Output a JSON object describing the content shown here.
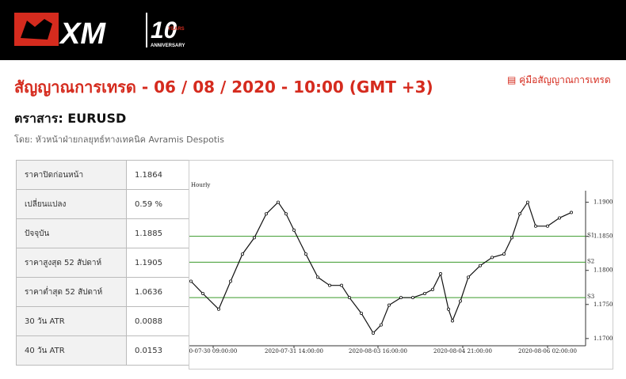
{
  "header": {
    "logo": "XM",
    "anniversary_number": "10",
    "anniversary_years": "YEARS",
    "anniversary": "ANNIVERSARY"
  },
  "title": "สัญญาณการเทรด - 06 / 08 / 2020 - 10:00 (GMT +3)",
  "guide_link": "คู่มือสัญญาณการเทรด",
  "instrument": "ตราสาร: EURUSD",
  "author": "โดย: หัวหน้าฝ่ายกลยุทธ์ทางเทคนิค Avramis Despotis",
  "table": {
    "rows": [
      [
        "ราคาปิดก่อนหน้า",
        "1.1864"
      ],
      [
        "เปลี่ยนแปลง",
        "0.59 %"
      ],
      [
        "ปัจจุบัน",
        "1.1885"
      ],
      [
        "ราคาสูงสุด 52 สัปดาห์",
        "1.1905"
      ],
      [
        "ราคาต่ำสุด 52 สัปดาห์",
        "1.0636"
      ],
      [
        "30 วัน ATR",
        "0.0088"
      ],
      [
        "40 วัน ATR",
        "0.0153"
      ]
    ]
  },
  "chart_data": {
    "type": "line",
    "subtitle": "Hourly",
    "x": [
      0.4,
      3.4,
      7.4,
      10.4,
      13.4,
      16.4,
      19.4,
      22.4,
      24.4,
      26.4,
      29.4,
      32.4,
      35.4,
      38.4,
      40.4,
      43.4,
      46.4,
      48.4,
      50.4,
      53.4,
      56.4,
      59.4,
      61.4,
      63.4,
      65.4,
      66.4,
      68.4,
      70.4,
      73.4,
      76.4,
      79.4,
      81.4,
      83.4,
      85.4,
      87.4,
      90.4,
      93.4,
      96.4
    ],
    "values": [
      1.1784,
      1.1766,
      1.1743,
      1.1784,
      1.1824,
      1.1848,
      1.1883,
      1.19,
      1.1883,
      1.1859,
      1.1824,
      1.179,
      1.1778,
      1.1778,
      1.176,
      1.1737,
      1.1708,
      1.172,
      1.1749,
      1.176,
      1.176,
      1.1766,
      1.1772,
      1.1795,
      1.1743,
      1.1726,
      1.1755,
      1.179,
      1.1807,
      1.1819,
      1.1824,
      1.1848,
      1.1883,
      1.19,
      1.1865,
      1.1865,
      1.1877,
      1.1885
    ],
    "color": "#111111",
    "xlim": [
      0,
      100
    ],
    "xticks": [
      {
        "value": 6,
        "label": "0-07-30 09:00:00"
      },
      {
        "value": 26.4,
        "label": "2020-07-31 14:00:00"
      },
      {
        "value": 47.6,
        "label": "2020-08-03 16:00:00"
      },
      {
        "value": 69,
        "label": "2020-08-04 21:00:00"
      },
      {
        "value": 90.4,
        "label": "2020-08-06 02:00:00"
      }
    ],
    "ylim": [
      1.1694,
      1.1917
    ],
    "yticks": [
      {
        "value": 1.17,
        "label": "1.1700"
      },
      {
        "value": 1.175,
        "label": "1.1750"
      },
      {
        "value": 1.18,
        "label": "1.1800"
      },
      {
        "value": 1.185,
        "label": "1.1850"
      },
      {
        "value": 1.19,
        "label": "1.1900"
      }
    ],
    "levels": [
      {
        "label": "S1",
        "value": 1.185,
        "color": "#3a9a2a"
      },
      {
        "label": "S2",
        "value": 1.1812,
        "color": "#3a9a2a"
      },
      {
        "label": "S3",
        "value": 1.176,
        "color": "#3a9a2a"
      }
    ]
  }
}
